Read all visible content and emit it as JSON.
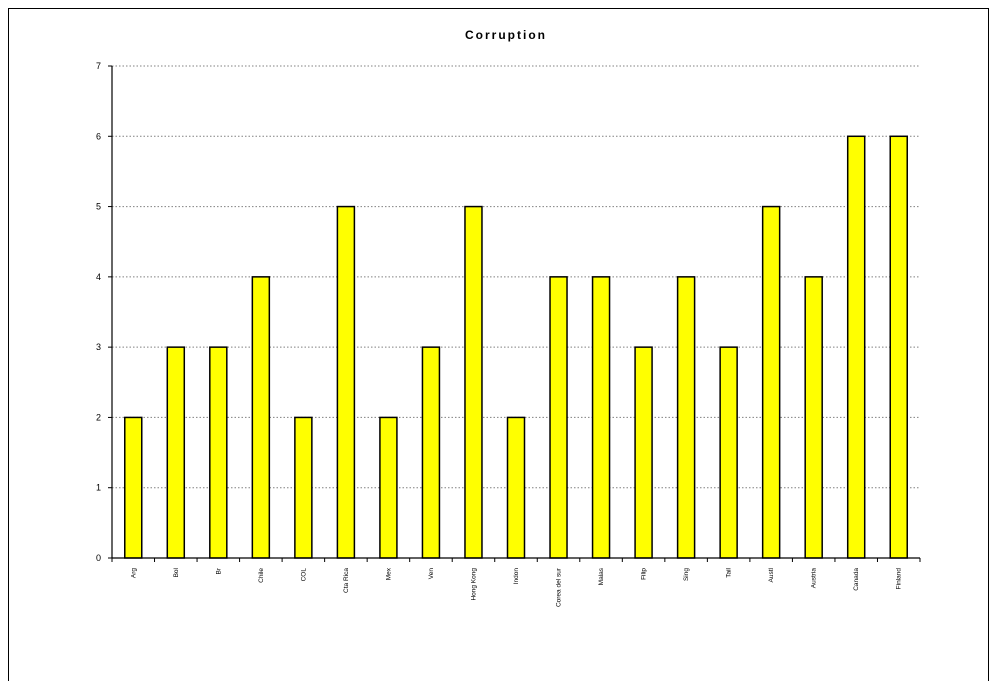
{
  "chart_data": {
    "type": "bar",
    "title": "Corruption",
    "xlabel": "",
    "ylabel": "",
    "categories": [
      "Arg",
      "Bol",
      "Br",
      "Chile",
      "COL",
      "Cta Rica",
      "Mex",
      "Ven",
      "Hong Kong",
      "Indon",
      "Corea del sur",
      "Malas",
      "Filip",
      "Sing",
      "Tail",
      "Austl",
      "Austria",
      "Canada",
      "Finland"
    ],
    "values": [
      2,
      3,
      3,
      4,
      2,
      5,
      2,
      3,
      5,
      2,
      4,
      4,
      3,
      4,
      3,
      5,
      4,
      6,
      6
    ],
    "yticks": [
      "0",
      "1",
      "2",
      "3",
      "4",
      "5",
      "6",
      "7"
    ],
    "ylim": [
      0,
      7
    ],
    "grid": true,
    "legend": "none",
    "bar_color": "#ffff00",
    "bar_stroke": "#000000",
    "grid_color": "#808080"
  }
}
